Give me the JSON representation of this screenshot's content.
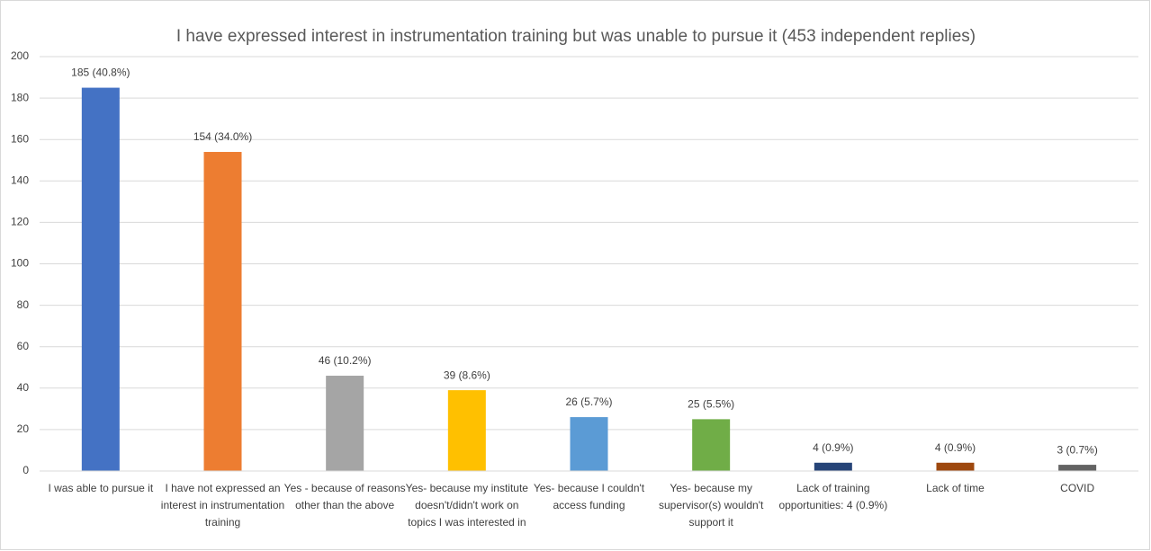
{
  "chart_data": {
    "type": "bar",
    "title": "I have expressed interest in instrumentation training but was unable to pursue it (453 independent replies)",
    "categories": [
      "I was able to pursue it",
      "I have not expressed an interest in instrumentation training",
      "Yes - because of reasons other than the above",
      "Yes- because my institute doesn't/didn't work on topics I was interested in",
      "Yes- because I couldn't access funding",
      "Yes- because my supervisor(s) wouldn't support it",
      "Lack of training opportunities: 4 (0.9%)",
      "Lack of time",
      "COVID"
    ],
    "values": [
      185,
      154,
      46,
      39,
      26,
      25,
      4,
      4,
      3
    ],
    "value_labels": [
      "185 (40.8%)",
      "154 (34.0%)",
      "46 (10.2%)",
      "39 (8.6%)",
      "26 (5.7%)",
      "25 (5.5%)",
      "4 (0.9%)",
      "4 (0.9%)",
      "3 (0.7%)"
    ],
    "colors": [
      "#4472c4",
      "#ed7d31",
      "#a5a5a5",
      "#ffc000",
      "#5b9bd5",
      "#70ad47",
      "#264478",
      "#9e480e",
      "#636363"
    ],
    "ylim": [
      0,
      200
    ],
    "yticks": [
      0,
      20,
      40,
      60,
      80,
      100,
      120,
      140,
      160,
      180,
      200
    ],
    "grid": true
  }
}
